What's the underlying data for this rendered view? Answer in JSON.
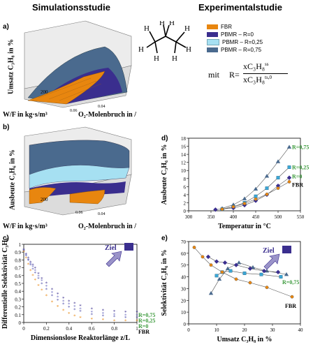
{
  "headers": {
    "left": "Simulationsstudie",
    "right": "Experimentalstudie"
  },
  "panel_labels": {
    "a": "a)",
    "b": "b)",
    "c": "c)",
    "d": "d)",
    "e": "e)"
  },
  "panel_a": {
    "ylabel": "Umsatz C₃H₈ in %",
    "xlabel_left": "W/F in kg·s/m³",
    "xlabel_right": "O₂-Molenbruch in /",
    "ticks": [
      "200",
      "0.04",
      "0.06"
    ]
  },
  "panel_b": {
    "ylabel": "Ausbeute C₃H₆ in %",
    "xlabel_left": "W/F in kg·s/m³",
    "xlabel_right": "O₂-Molenbruch in /",
    "ticks": [
      "200",
      "0.06",
      "0.04"
    ]
  },
  "legend": {
    "items": [
      {
        "label": "FBR",
        "color": "#E8860F"
      },
      {
        "label": "PBMR – R=0",
        "color": "#3A2E8E"
      },
      {
        "label": "PBMR – R=0,25",
        "color": "#A6E0F2"
      },
      {
        "label": "PBMR – R=0,75",
        "color": "#4A6A8E"
      }
    ],
    "formula_mit": "mit",
    "formula_R": "R=",
    "formula_num": "xC₃H₈",
    "formula_num_sup": "ss",
    "formula_den": "xC₃H₈",
    "formula_den_sup": "ts,0"
  },
  "colors": {
    "fbr": "#E8860F",
    "r0": "#3A2E8E",
    "r025": "#3BA7D6",
    "r075": "#4A6A8E",
    "purple": "#3A2E8E",
    "green": "#3C9A3C"
  },
  "ziel_c": "Ziel",
  "ziel_e": "Ziel",
  "chart_data": [
    {
      "id": "c",
      "type": "scatter",
      "ylabel": "Differentielle Selektivität C₃H₆",
      "xlabel": "Dimensionslose Reaktorlänge z/L",
      "xlim": [
        0,
        1
      ],
      "ylim": [
        0,
        1
      ],
      "xticks": [
        "0",
        "0.2",
        "0.4",
        "0.6",
        "0.8",
        "1"
      ],
      "yticks": [
        "0",
        "0.1",
        "0.2",
        "0.3",
        "0.4",
        "0.5",
        "0.6",
        "0.7",
        "0.8",
        "0.9",
        "1"
      ],
      "x": [
        0,
        0.02,
        0.04,
        0.06,
        0.08,
        0.1,
        0.13,
        0.16,
        0.2,
        0.25,
        0.3,
        0.35,
        0.4,
        0.45,
        0.5,
        0.6,
        0.7,
        0.8,
        0.9,
        1.0
      ],
      "series": [
        {
          "name": "R=0,75",
          "values": [
            0.93,
            0.87,
            0.82,
            0.77,
            0.73,
            0.69,
            0.62,
            0.56,
            0.5,
            0.42,
            0.36,
            0.31,
            0.27,
            0.24,
            0.21,
            0.17,
            0.15,
            0.14,
            0.13,
            0.13
          ]
        },
        {
          "name": "R=0,25",
          "values": [
            0.92,
            0.86,
            0.8,
            0.75,
            0.71,
            0.66,
            0.59,
            0.53,
            0.46,
            0.38,
            0.32,
            0.27,
            0.23,
            0.2,
            0.17,
            0.13,
            0.11,
            0.1,
            0.09,
            0.09
          ]
        },
        {
          "name": "R=0",
          "values": [
            0.91,
            0.85,
            0.79,
            0.73,
            0.68,
            0.63,
            0.56,
            0.49,
            0.42,
            0.34,
            0.28,
            0.23,
            0.19,
            0.16,
            0.14,
            0.1,
            0.08,
            0.07,
            0.06,
            0.06
          ]
        },
        {
          "name": "FBR",
          "values": [
            0.9,
            0.82,
            0.74,
            0.66,
            0.6,
            0.54,
            0.47,
            0.41,
            0.34,
            0.26,
            0.2,
            0.15,
            0.11,
            0.08,
            0.06,
            0.04,
            0.03,
            0.02,
            0.02,
            0.02
          ]
        }
      ]
    },
    {
      "id": "d",
      "type": "line",
      "ylabel": "Ausbeute C₃H₆ in %",
      "xlabel": "Temperatur in °C",
      "xlim": [
        300,
        550
      ],
      "ylim": [
        0,
        18
      ],
      "xticks": [
        "300",
        "350",
        "400",
        "450",
        "500",
        "550"
      ],
      "yticks": [
        "0",
        "2",
        "4",
        "6",
        "8",
        "10",
        "12",
        "14",
        "16",
        "18"
      ],
      "series": [
        {
          "name": "R=0,75",
          "x": [
            375,
            400,
            425,
            450,
            475,
            500,
            525
          ],
          "values": [
            0.6,
            1.5,
            3.0,
            5.4,
            8.6,
            12.2,
            15.8
          ]
        },
        {
          "name": "R=0,25",
          "x": [
            375,
            400,
            425,
            450,
            475,
            500,
            525
          ],
          "values": [
            0.4,
            1.0,
            2.0,
            3.6,
            5.6,
            8.2,
            10.8
          ]
        },
        {
          "name": "R=0",
          "x": [
            360,
            400,
            425,
            450,
            475,
            500,
            525
          ],
          "values": [
            0.3,
            0.7,
            1.4,
            2.5,
            4.0,
            6.2,
            8.2
          ]
        },
        {
          "name": "FBR",
          "x": [
            375,
            400,
            425,
            450,
            475,
            500,
            525
          ],
          "values": [
            0.4,
            1.0,
            1.8,
            2.9,
            4.1,
            5.6,
            7.2
          ]
        }
      ]
    },
    {
      "id": "e",
      "type": "line",
      "ylabel": "Selektivität C₃H₆ in %",
      "xlabel": "Umsatz C₃H₈ in %",
      "xlim": [
        0,
        40
      ],
      "ylim": [
        0,
        70
      ],
      "xticks": [
        "0",
        "10",
        "20",
        "30",
        "40"
      ],
      "yticks": [
        "0",
        "10",
        "20",
        "30",
        "40",
        "50",
        "60",
        "70"
      ],
      "series": [
        {
          "name": "R=0,75",
          "x": [
            8,
            11,
            14,
            18,
            23,
            28,
            35
          ],
          "values": [
            26,
            38,
            47,
            52,
            48,
            45,
            42
          ]
        },
        {
          "name": "R=0,25",
          "x": [
            10,
            12,
            15,
            20,
            26,
            33
          ],
          "values": [
            41,
            44,
            45,
            43,
            42,
            40
          ]
        },
        {
          "name": "R=0",
          "x": [
            7,
            10,
            13,
            17,
            22,
            27,
            32
          ],
          "values": [
            57,
            53,
            52,
            50,
            47,
            45,
            44
          ]
        },
        {
          "name": "FBR",
          "x": [
            2,
            5,
            8,
            12,
            17,
            22,
            28,
            37
          ],
          "values": [
            65,
            57,
            50,
            44,
            38,
            35,
            31,
            23
          ]
        }
      ]
    }
  ]
}
